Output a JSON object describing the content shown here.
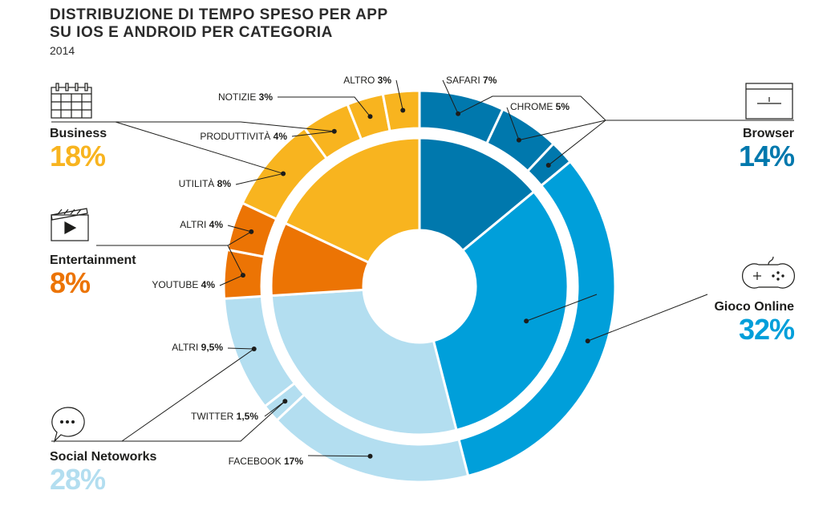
{
  "title_line1": "DISTRIBUZIONE DI TEMPO SPESO PER APP",
  "title_line2": "SU IOS E ANDROID PER CATEGORIA",
  "subtitle": "2014",
  "chart_data": {
    "type": "pie",
    "variant": "sunburst",
    "inner_ring": [
      {
        "name": "Browser",
        "value": 14,
        "label": "14%",
        "color": "#0078ad",
        "icon": "browser-window-icon"
      },
      {
        "name": "Gioco Online",
        "value": 32,
        "label": "32%",
        "color": "#009fda",
        "icon": "gamepad-icon"
      },
      {
        "name": "Social Netoworks",
        "value": 28,
        "label": "28%",
        "color": "#b3def0",
        "icon": "chat-bubble-icon"
      },
      {
        "name": "Entertainment",
        "value": 8,
        "label": "8%",
        "color": "#ec7404",
        "icon": "clapperboard-icon"
      },
      {
        "name": "Business",
        "value": 18,
        "label": "18%",
        "color": "#f8b41f",
        "icon": "calendar-icon"
      }
    ],
    "outer_ring": [
      {
        "name": "SAFARI",
        "value": 7,
        "value_label": "7%",
        "parent": "Browser"
      },
      {
        "name": "CHROME",
        "value": 5,
        "value_label": "5%",
        "parent": "Browser"
      },
      {
        "name": "",
        "value": 2,
        "value_label": "",
        "parent": "Browser"
      },
      {
        "name": "",
        "value": 32,
        "value_label": "",
        "parent": "Gioco Online"
      },
      {
        "name": "FACEBOOK",
        "value": 17,
        "value_label": "17%",
        "parent": "Social Netoworks"
      },
      {
        "name": "TWITTER",
        "value": 1.5,
        "value_label": "1,5%",
        "parent": "Social Netoworks"
      },
      {
        "name": "ALTRI",
        "value": 9.5,
        "value_label": "9,5%",
        "parent": "Social Netoworks"
      },
      {
        "name": "YOUTUBE",
        "value": 4,
        "value_label": "4%",
        "parent": "Entertainment"
      },
      {
        "name": "ALTRI",
        "value": 4,
        "value_label": "4%",
        "parent": "Entertainment"
      },
      {
        "name": "UTILITÀ",
        "value": 8,
        "value_label": "8%",
        "parent": "Business"
      },
      {
        "name": "PRODUTTIVITÀ",
        "value": 4,
        "value_label": "4%",
        "parent": "Business"
      },
      {
        "name": "NOTIZIE",
        "value": 3,
        "value_label": "3%",
        "parent": "Business"
      },
      {
        "name": "ALTRO",
        "value": 3,
        "value_label": "3%",
        "parent": "Business"
      }
    ]
  }
}
